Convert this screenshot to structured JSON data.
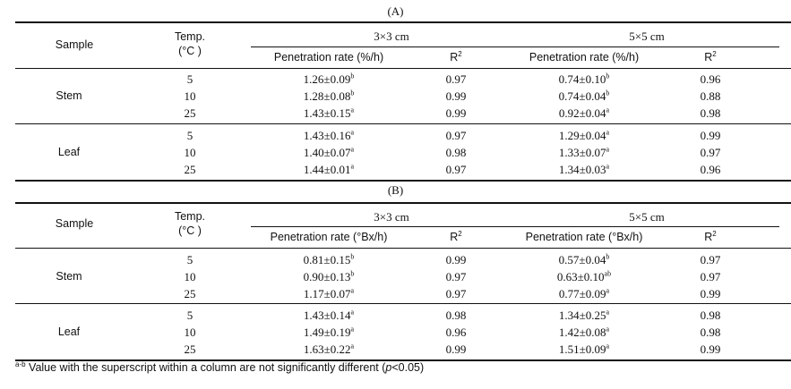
{
  "panels": [
    {
      "label": "(A)",
      "sample_header": "Sample",
      "temp_header_1": "Temp.",
      "temp_header_2": "(°C )",
      "size1": "3×3 cm",
      "size2": "5×5 cm",
      "rate_header": "Penetration rate (%/h)",
      "r2_header": "R",
      "groups": [
        {
          "name": "Stem",
          "rows": [
            {
              "temp": "5",
              "rate1": "1.26±0.09",
              "sup1": "b",
              "r2_1": "0.97",
              "rate2": "0.74±0.10",
              "sup2": "b",
              "r2_2": "0.96"
            },
            {
              "temp": "10",
              "rate1": "1.28±0.08",
              "sup1": "b",
              "r2_1": "0.99",
              "rate2": "0.74±0.04",
              "sup2": "b",
              "r2_2": "0.88"
            },
            {
              "temp": "25",
              "rate1": "1.43±0.15",
              "sup1": "a",
              "r2_1": "0.99",
              "rate2": "0.92±0.04",
              "sup2": "a",
              "r2_2": "0.98"
            }
          ]
        },
        {
          "name": "Leaf",
          "rows": [
            {
              "temp": "5",
              "rate1": "1.43±0.16",
              "sup1": "a",
              "r2_1": "0.97",
              "rate2": "1.29±0.04",
              "sup2": "a",
              "r2_2": "0.99"
            },
            {
              "temp": "10",
              "rate1": "1.40±0.07",
              "sup1": "a",
              "r2_1": "0.98",
              "rate2": "1.33±0.07",
              "sup2": "a",
              "r2_2": "0.97"
            },
            {
              "temp": "25",
              "rate1": "1.44±0.01",
              "sup1": "a",
              "r2_1": "0.97",
              "rate2": "1.34±0.03",
              "sup2": "a",
              "r2_2": "0.96"
            }
          ]
        }
      ]
    },
    {
      "label": "(B)",
      "sample_header": "Sample",
      "temp_header_1": "Temp.",
      "temp_header_2": "(°C )",
      "size1": "3×3 cm",
      "size2": "5×5 cm",
      "rate_header": "Penetration rate (°Bx/h)",
      "r2_header": "R",
      "groups": [
        {
          "name": "Stem",
          "rows": [
            {
              "temp": "5",
              "rate1": "0.81±0.15",
              "sup1": "b",
              "r2_1": "0.99",
              "rate2": "0.57±0.04",
              "sup2": "b",
              "r2_2": "0.97"
            },
            {
              "temp": "10",
              "rate1": "0.90±0.13",
              "sup1": "b",
              "r2_1": "0.97",
              "rate2": "0.63±0.10",
              "sup2": "ab",
              "r2_2": "0.97"
            },
            {
              "temp": "25",
              "rate1": "1.17±0.07",
              "sup1": "a",
              "r2_1": "0.97",
              "rate2": "0.77±0.09",
              "sup2": "a",
              "r2_2": "0.99"
            }
          ]
        },
        {
          "name": "Leaf",
          "rows": [
            {
              "temp": "5",
              "rate1": "1.43±0.14",
              "sup1": "a",
              "r2_1": "0.98",
              "rate2": "1.34±0.25",
              "sup2": "a",
              "r2_2": "0.98"
            },
            {
              "temp": "10",
              "rate1": "1.49±0.19",
              "sup1": "a",
              "r2_1": "0.96",
              "rate2": "1.42±0.08",
              "sup2": "a",
              "r2_2": "0.98"
            },
            {
              "temp": "25",
              "rate1": "1.63±0.22",
              "sup1": "a",
              "r2_1": "0.99",
              "rate2": "1.51±0.09",
              "sup2": "a",
              "r2_2": "0.99"
            }
          ]
        }
      ]
    }
  ],
  "r2_superscript": "2",
  "footnote": {
    "marker": "a-b",
    "text": " Value with the superscript within a column are not significantly different (",
    "p_italic": "p",
    "tail": "<0.05)"
  }
}
